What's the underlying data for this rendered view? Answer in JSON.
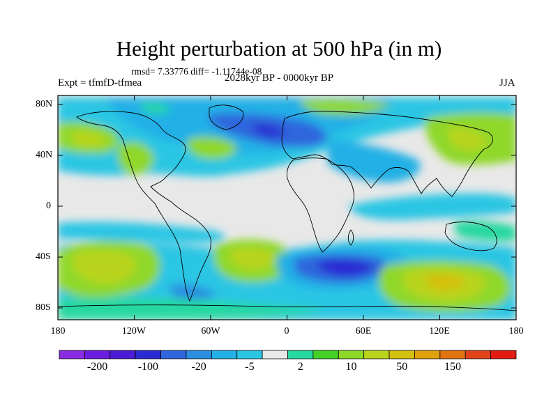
{
  "title": "Height perturbation at 500 hPa (in m)",
  "stats_text": "rmsd= 7.33776 diff= -1.11744e-08",
  "experiment": "Expt = tfmfD-tfmea",
  "period": "2028kyr BP - 0000kyr BP",
  "season": "JJA",
  "lat_ticks": [
    "80N",
    "40N",
    "0",
    "40S",
    "80S"
  ],
  "lon_ticks": [
    "180",
    "120W",
    "60W",
    "0",
    "60E",
    "120E",
    "180"
  ],
  "colorbar": {
    "colors": [
      "#8a2be2",
      "#6a1ee0",
      "#4b1bd6",
      "#2a2ad2",
      "#2f66dd",
      "#2a8fe0",
      "#22b0e6",
      "#2bc6e4",
      "#e8e8e8",
      "#27d8a0",
      "#44d226",
      "#8fd82a",
      "#b9d41b",
      "#d4c00f",
      "#e1a10d",
      "#e17410",
      "#e2431a",
      "#e11b12"
    ],
    "labels": [
      "-200",
      "-100",
      "-20",
      "-5",
      "2",
      "10",
      "50",
      "150"
    ]
  }
}
